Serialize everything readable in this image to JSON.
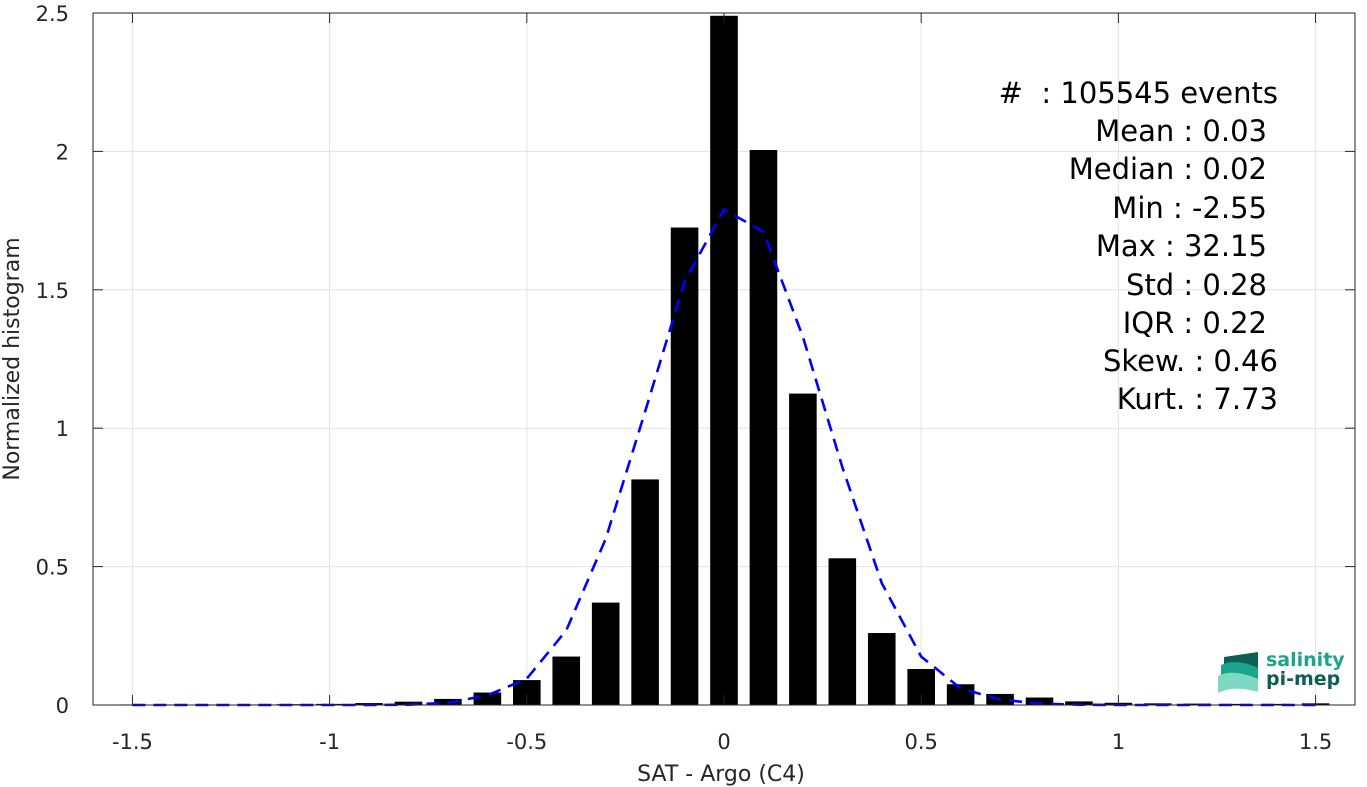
{
  "chart_data": {
    "type": "bar",
    "xlabel": "SAT - Argo (C4)",
    "ylabel": "Normalized histogram",
    "xlim": [
      -1.6,
      1.6
    ],
    "ylim": [
      0,
      2.5
    ],
    "xticks": [
      -1.5,
      -1,
      -0.5,
      0,
      0.5,
      1,
      1.5
    ],
    "xtick_labels": [
      "-1.5",
      "-1",
      "-0.5",
      "0",
      "0.5",
      "1",
      "1.5"
    ],
    "yticks": [
      0,
      0.5,
      1,
      1.5,
      2,
      2.5
    ],
    "ytick_labels": [
      "0",
      "0.5",
      "1",
      "1.5",
      "2",
      "2.5"
    ],
    "grid": true,
    "bar_width": 0.07,
    "bars": {
      "x": [
        -1.5,
        -1.4,
        -1.3,
        -1.2,
        -1.1,
        -1.0,
        -0.9,
        -0.8,
        -0.7,
        -0.6,
        -0.5,
        -0.4,
        -0.3,
        -0.2,
        -0.1,
        0.0,
        0.1,
        0.2,
        0.3,
        0.4,
        0.5,
        0.6,
        0.7,
        0.8,
        0.9,
        1.0,
        1.1,
        1.2,
        1.3,
        1.4,
        1.5
      ],
      "values": [
        0.002,
        0.002,
        0.002,
        0.002,
        0.003,
        0.004,
        0.007,
        0.012,
        0.022,
        0.045,
        0.09,
        0.175,
        0.37,
        0.815,
        1.725,
        2.49,
        2.005,
        1.125,
        0.53,
        0.26,
        0.13,
        0.075,
        0.04,
        0.027,
        0.013,
        0.008,
        0.006,
        0.005,
        0.004,
        0.004,
        0.006
      ],
      "color": "#000000"
    },
    "fit_curve": {
      "style": "dashed",
      "color": "#0000ff",
      "x": [
        -1.5,
        -1.4,
        -1.3,
        -1.2,
        -1.1,
        -1.0,
        -0.9,
        -0.8,
        -0.7,
        -0.6,
        -0.5,
        -0.4,
        -0.3,
        -0.2,
        -0.1,
        0.0,
        0.1,
        0.2,
        0.3,
        0.4,
        0.5,
        0.6,
        0.7,
        0.8,
        0.9,
        1.0,
        1.1,
        1.2,
        1.3,
        1.4,
        1.5
      ],
      "values": [
        0.0,
        0.0,
        0.0,
        0.0,
        0.0,
        0.0,
        0.0,
        0.001,
        0.008,
        0.035,
        0.095,
        0.27,
        0.6,
        1.06,
        1.53,
        1.79,
        1.71,
        1.33,
        0.86,
        0.44,
        0.175,
        0.06,
        0.02,
        0.005,
        0.001,
        0.0,
        0.0,
        0.0,
        0.0,
        0.0,
        0.0
      ]
    },
    "annotation": {
      "placement": "top-right",
      "lines": [
        "#  : 105545 events",
        "Mean : 0.03",
        "Median : 0.02",
        "Min : -2.55",
        "Max : 32.15",
        "Std : 0.28",
        "IQR : 0.22",
        "Skew. : 0.46",
        "Kurt. : 7.73"
      ]
    }
  },
  "logo": {
    "line1": "salinity",
    "line2": "pi-mep",
    "color1": "#1aa58c",
    "color2": "#0d5e55"
  }
}
